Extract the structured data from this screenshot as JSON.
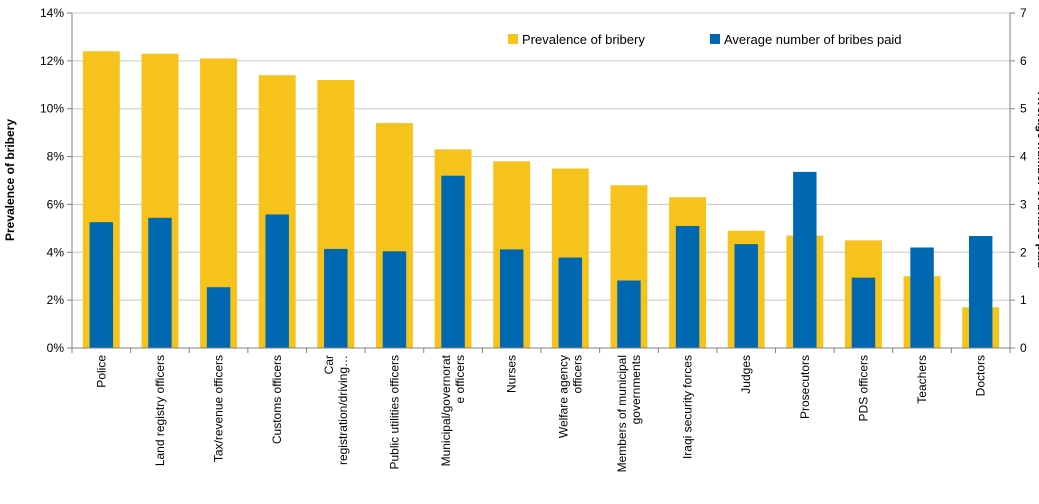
{
  "chart_data": {
    "type": "bar",
    "title": "",
    "categories": [
      [
        "Police"
      ],
      [
        "Land registry officers"
      ],
      [
        "Tax/revenue officers"
      ],
      [
        "Customs officers"
      ],
      [
        "Car",
        "registration/driving…"
      ],
      [
        "Public utilities officers"
      ],
      [
        "Municipal/governorat",
        "e officers"
      ],
      [
        "Nurses"
      ],
      [
        "Welfare agency",
        "officers"
      ],
      [
        "Members of municipal",
        "governments"
      ],
      [
        "Iraqi security forces"
      ],
      [
        "Judges"
      ],
      [
        "Prosecutors"
      ],
      [
        "PDS officers"
      ],
      [
        "Teachers"
      ],
      [
        "Doctors"
      ]
    ],
    "series": [
      {
        "name": "Prevalence of bribery",
        "axis": "left",
        "color": "#f5c31c",
        "values": [
          12.4,
          12.3,
          12.1,
          11.4,
          11.2,
          9.4,
          8.3,
          7.8,
          7.5,
          6.8,
          6.3,
          4.9,
          4.7,
          4.5,
          3.0,
          1.7
        ]
      },
      {
        "name": "Average number of bribes paid",
        "axis": "right",
        "color": "#0067b1",
        "values": [
          2.63,
          2.72,
          1.27,
          2.79,
          2.07,
          2.02,
          3.6,
          2.06,
          1.89,
          1.41,
          2.55,
          2.17,
          3.68,
          1.47,
          2.1,
          2.34
        ]
      }
    ],
    "ylabel": "Prevalence of bribery",
    "y2label": "Average number of bribes paid",
    "ylim": [
      0,
      14
    ],
    "y2lim": [
      0,
      7
    ],
    "yticks": [
      "0%",
      "2%",
      "4%",
      "6%",
      "8%",
      "10%",
      "12%",
      "14%"
    ],
    "y2ticks": [
      "0",
      "1",
      "2",
      "3",
      "4",
      "5",
      "6",
      "7"
    ],
    "legend_position": "top-right",
    "grid": true
  }
}
